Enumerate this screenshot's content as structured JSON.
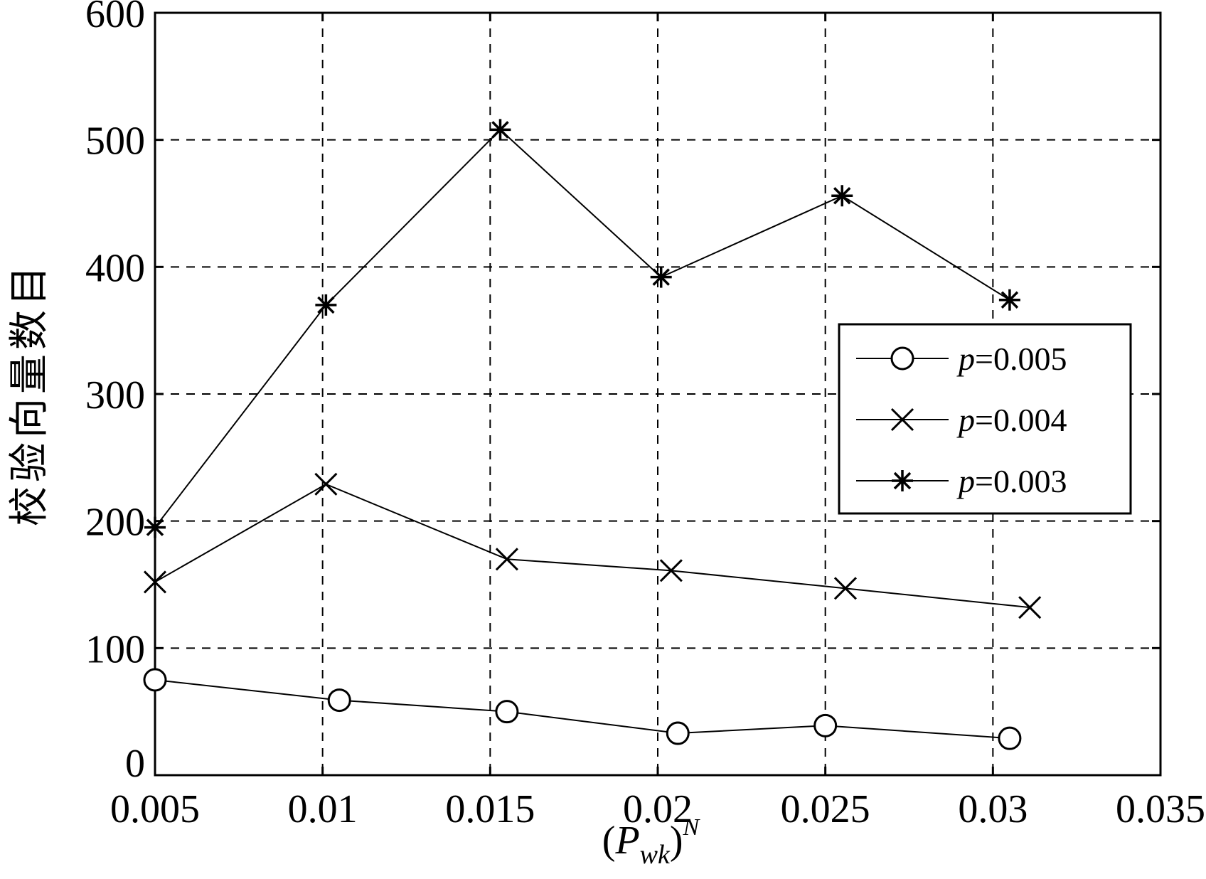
{
  "chart_data": {
    "type": "line",
    "xlabel": {
      "open": "(",
      "base": "P",
      "sub": "wk",
      "close": ")",
      "sup": "N"
    },
    "ylabel": "校验向量数目",
    "xlim": [
      0.005,
      0.035
    ],
    "ylim": [
      0,
      600
    ],
    "xticks": [
      "0.005",
      "0.01",
      "0.015",
      "0.02",
      "0.025",
      "0.03",
      "0.035"
    ],
    "yticks": [
      "0",
      "100",
      "200",
      "300",
      "400",
      "500",
      "600"
    ],
    "grid": true,
    "legend_position": "center-right",
    "series": [
      {
        "name": "p=0.005",
        "legend": {
          "var": "p",
          "rest": "=0.005"
        },
        "marker": "circle",
        "x": [
          0.005,
          0.0105,
          0.0155,
          0.0206,
          0.025,
          0.0305
        ],
        "y": [
          75,
          59,
          50,
          33,
          39,
          29
        ]
      },
      {
        "name": "p=0.004",
        "legend": {
          "var": "p",
          "rest": "=0.004"
        },
        "marker": "x",
        "x": [
          0.005,
          0.0101,
          0.0155,
          0.0204,
          0.0256,
          0.0311
        ],
        "y": [
          152,
          229,
          170,
          161,
          147,
          132
        ]
      },
      {
        "name": "p=0.003",
        "legend": {
          "var": "p",
          "rest": "=0.003"
        },
        "marker": "star",
        "x": [
          0.005,
          0.0101,
          0.0153,
          0.0201,
          0.0255,
          0.0305
        ],
        "y": [
          195,
          370,
          508,
          392,
          456,
          374
        ]
      }
    ]
  }
}
